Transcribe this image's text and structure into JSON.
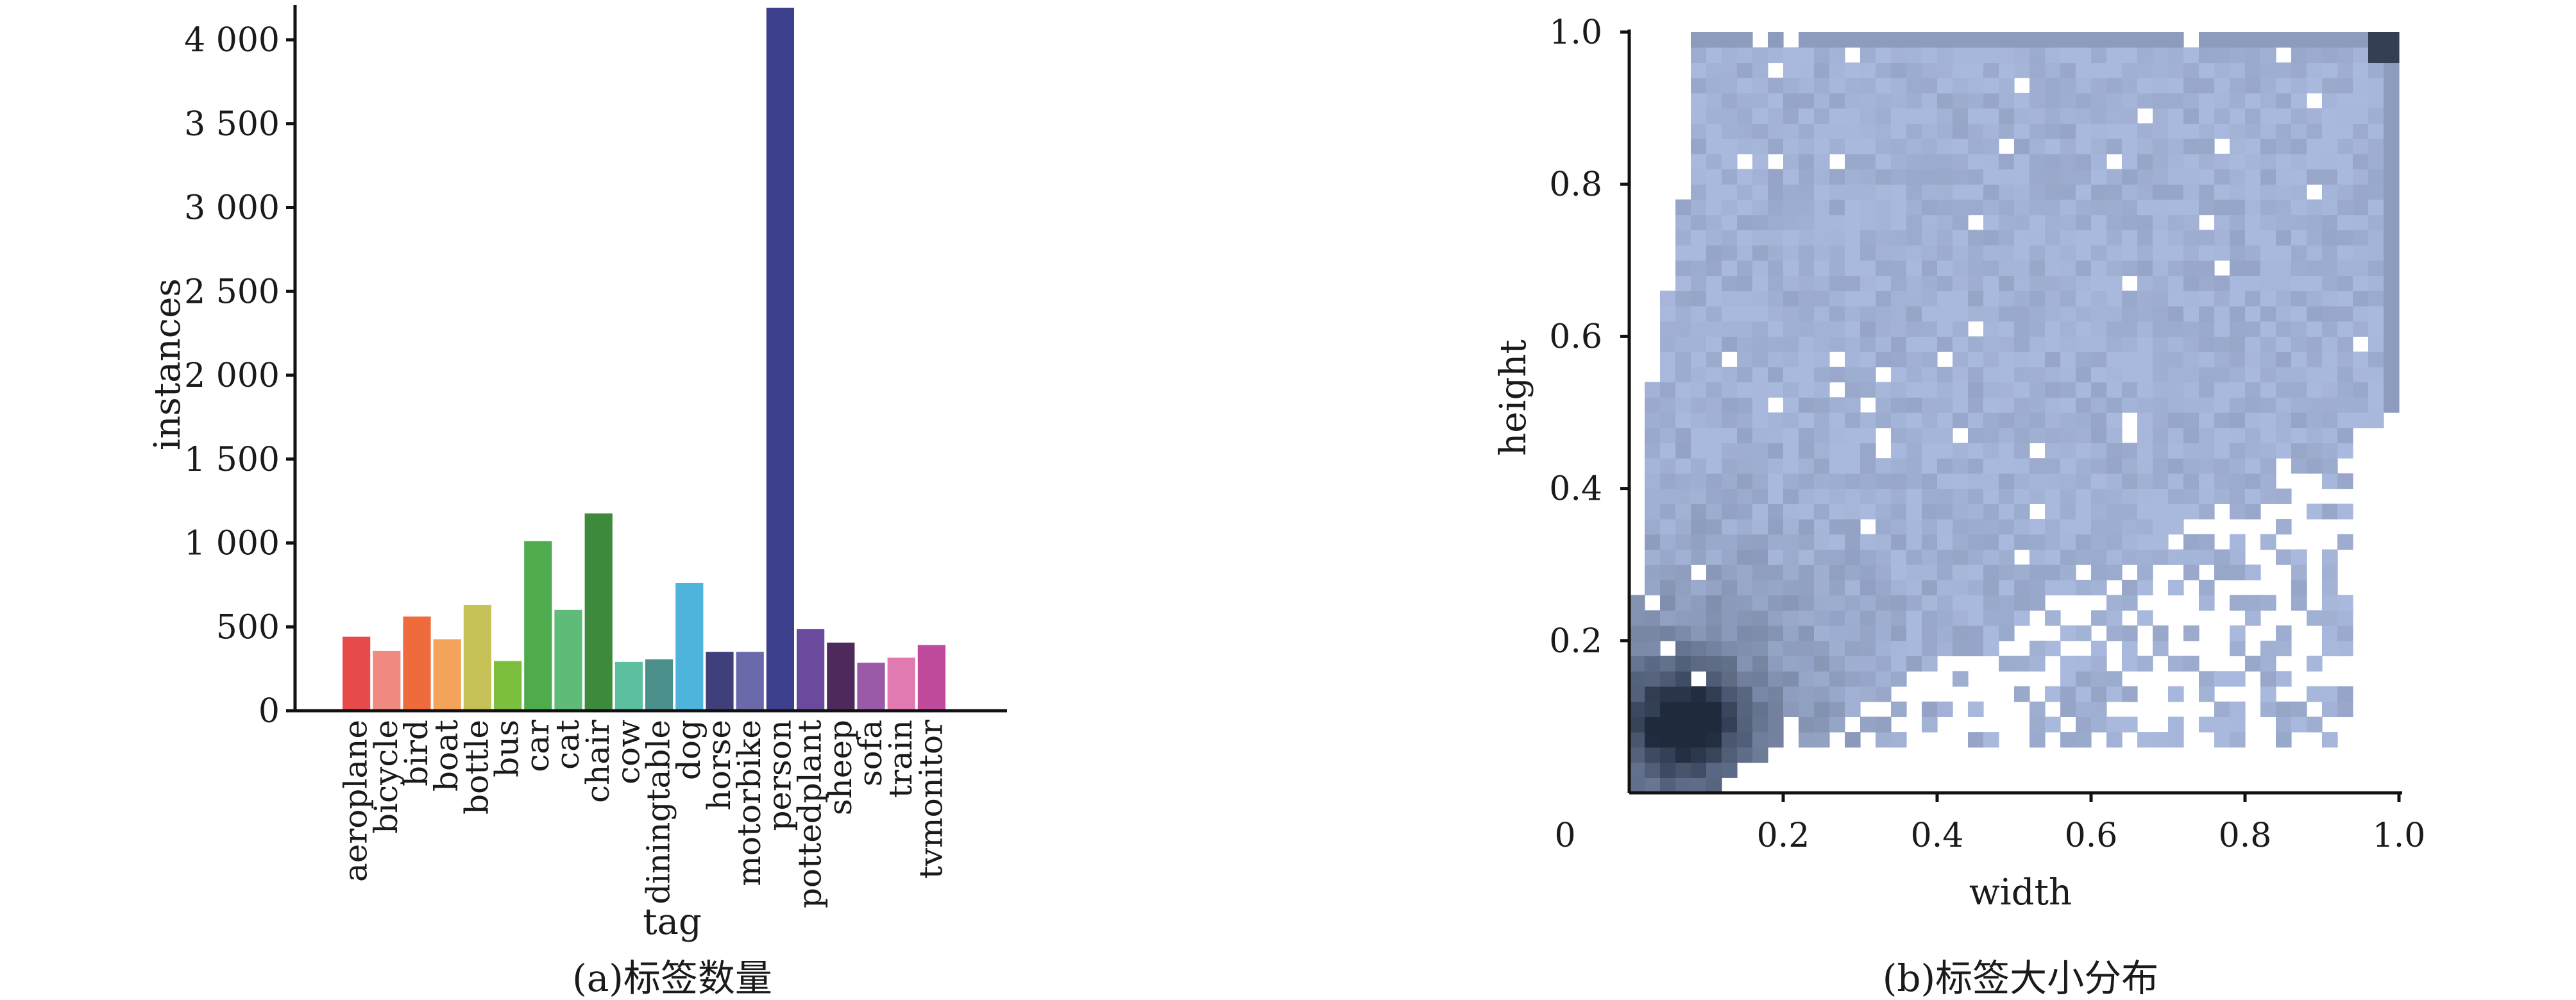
{
  "chart_data": [
    {
      "type": "bar",
      "title": "",
      "caption": "(a)标签数量",
      "xlabel": "tag",
      "ylabel": "instances",
      "ylim": [
        0,
        4200
      ],
      "yticks": [
        0,
        500,
        1000,
        1500,
        2000,
        2500,
        3000,
        3500,
        4000
      ],
      "ytick_labels": [
        "0",
        "500",
        "1 000",
        "1 500",
        "2 000",
        "2 500",
        "3 000",
        "3 500",
        "4 000"
      ],
      "grid": false,
      "categories": [
        "aeroplane",
        "bicycle",
        "bird",
        "boat",
        "bottle",
        "bus",
        "car",
        "cat",
        "chair",
        "cow",
        "diningtable",
        "dog",
        "horse",
        "motorbike",
        "person",
        "pottedplant",
        "sheep",
        "sofa",
        "train",
        "tvmonitor"
      ],
      "values": [
        445,
        360,
        565,
        430,
        635,
        300,
        1015,
        605,
        1180,
        295,
        310,
        765,
        355,
        355,
        4195,
        490,
        410,
        290,
        320,
        395
      ],
      "colors": [
        "#e64a4a",
        "#f08a80",
        "#ef6b3c",
        "#f3a45a",
        "#c6c258",
        "#7cbf3f",
        "#4eac4e",
        "#5fbb78",
        "#3e8a3c",
        "#5cbfa0",
        "#4a8f8a",
        "#4fb4dc",
        "#3f3f7c",
        "#6a6aaa",
        "#3c3f8c",
        "#6a4a9c",
        "#4e2a5c",
        "#9a5aa8",
        "#e07ab0",
        "#c04a9c"
      ]
    },
    {
      "type": "heatmap",
      "title": "",
      "caption": "(b)标签大小分布",
      "xlabel": "width",
      "ylabel": "height",
      "xlim": [
        0,
        1.0
      ],
      "ylim": [
        0,
        1.0
      ],
      "xticks": [
        0,
        0.2,
        0.4,
        0.6,
        0.8,
        1.0
      ],
      "xtick_labels": [
        "0",
        "0.2",
        "0.4",
        "0.6",
        "0.8",
        "1.0"
      ],
      "yticks": [
        0.2,
        0.4,
        0.6,
        0.8,
        1.0
      ],
      "ytick_labels": [
        "0.2",
        "0.4",
        "0.6",
        "0.8",
        "1.0"
      ],
      "grid": false,
      "bins": 50,
      "color_low": "#a9b9dd",
      "color_high": "#1f2a3d",
      "description": ""
    }
  ]
}
